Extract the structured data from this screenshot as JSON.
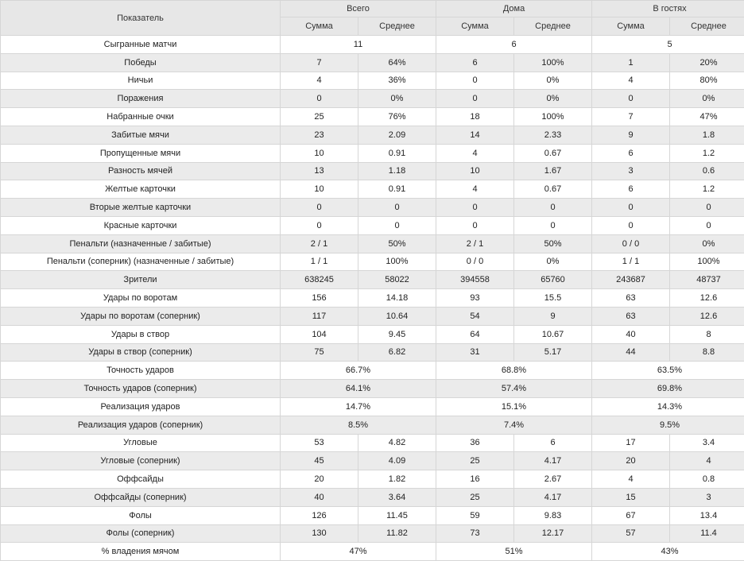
{
  "header": {
    "indicator": "Показатель",
    "groups": [
      "Всего",
      "Дома",
      "В гостях"
    ],
    "sub": [
      "Сумма",
      "Среднее"
    ]
  },
  "rows": [
    {
      "label": "Сыгранные матчи",
      "merged": true,
      "total": "11",
      "home": "6",
      "away": "5"
    },
    {
      "label": "Победы",
      "cells": [
        "7",
        "64%",
        "6",
        "100%",
        "1",
        "20%"
      ]
    },
    {
      "label": "Ничьи",
      "cells": [
        "4",
        "36%",
        "0",
        "0%",
        "4",
        "80%"
      ]
    },
    {
      "label": "Поражения",
      "cells": [
        "0",
        "0%",
        "0",
        "0%",
        "0",
        "0%"
      ]
    },
    {
      "label": "Набранные очки",
      "cells": [
        "25",
        "76%",
        "18",
        "100%",
        "7",
        "47%"
      ]
    },
    {
      "label": "Забитые мячи",
      "cells": [
        "23",
        "2.09",
        "14",
        "2.33",
        "9",
        "1.8"
      ]
    },
    {
      "label": "Пропущенные мячи",
      "cells": [
        "10",
        "0.91",
        "4",
        "0.67",
        "6",
        "1.2"
      ]
    },
    {
      "label": "Разность мячей",
      "cells": [
        "13",
        "1.18",
        "10",
        "1.67",
        "3",
        "0.6"
      ]
    },
    {
      "label": "Желтые карточки",
      "cells": [
        "10",
        "0.91",
        "4",
        "0.67",
        "6",
        "1.2"
      ]
    },
    {
      "label": "Вторые желтые карточки",
      "cells": [
        "0",
        "0",
        "0",
        "0",
        "0",
        "0"
      ]
    },
    {
      "label": "Красные карточки",
      "cells": [
        "0",
        "0",
        "0",
        "0",
        "0",
        "0"
      ]
    },
    {
      "label": "Пенальти (назначенные / забитые)",
      "cells": [
        "2 / 1",
        "50%",
        "2 / 1",
        "50%",
        "0 / 0",
        "0%"
      ]
    },
    {
      "label": "Пенальти (соперник) (назначенные / забитые)",
      "cells": [
        "1 / 1",
        "100%",
        "0 / 0",
        "0%",
        "1 / 1",
        "100%"
      ]
    },
    {
      "label": "Зрители",
      "cells": [
        "638245",
        "58022",
        "394558",
        "65760",
        "243687",
        "48737"
      ]
    },
    {
      "label": "Удары по воротам",
      "cells": [
        "156",
        "14.18",
        "93",
        "15.5",
        "63",
        "12.6"
      ]
    },
    {
      "label": "Удары по воротам (соперник)",
      "cells": [
        "117",
        "10.64",
        "54",
        "9",
        "63",
        "12.6"
      ]
    },
    {
      "label": "Удары в створ",
      "cells": [
        "104",
        "9.45",
        "64",
        "10.67",
        "40",
        "8"
      ]
    },
    {
      "label": "Удары в створ (соперник)",
      "cells": [
        "75",
        "6.82",
        "31",
        "5.17",
        "44",
        "8.8"
      ]
    },
    {
      "label": "Точность ударов",
      "merged": true,
      "total": "66.7%",
      "home": "68.8%",
      "away": "63.5%"
    },
    {
      "label": "Точность ударов (соперник)",
      "merged": true,
      "total": "64.1%",
      "home": "57.4%",
      "away": "69.8%"
    },
    {
      "label": "Реализация ударов",
      "merged": true,
      "total": "14.7%",
      "home": "15.1%",
      "away": "14.3%"
    },
    {
      "label": "Реализация ударов (соперник)",
      "merged": true,
      "total": "8.5%",
      "home": "7.4%",
      "away": "9.5%"
    },
    {
      "label": "Угловые",
      "cells": [
        "53",
        "4.82",
        "36",
        "6",
        "17",
        "3.4"
      ]
    },
    {
      "label": "Угловые (соперник)",
      "cells": [
        "45",
        "4.09",
        "25",
        "4.17",
        "20",
        "4"
      ]
    },
    {
      "label": "Оффсайды",
      "cells": [
        "20",
        "1.82",
        "16",
        "2.67",
        "4",
        "0.8"
      ]
    },
    {
      "label": "Оффсайды (соперник)",
      "cells": [
        "40",
        "3.64",
        "25",
        "4.17",
        "15",
        "3"
      ]
    },
    {
      "label": "Фолы",
      "cells": [
        "126",
        "11.45",
        "59",
        "9.83",
        "67",
        "13.4"
      ]
    },
    {
      "label": "Фолы (соперник)",
      "cells": [
        "130",
        "11.82",
        "73",
        "12.17",
        "57",
        "11.4"
      ]
    },
    {
      "label": "% владения мячом",
      "merged": true,
      "total": "47%",
      "home": "51%",
      "away": "43%"
    }
  ]
}
